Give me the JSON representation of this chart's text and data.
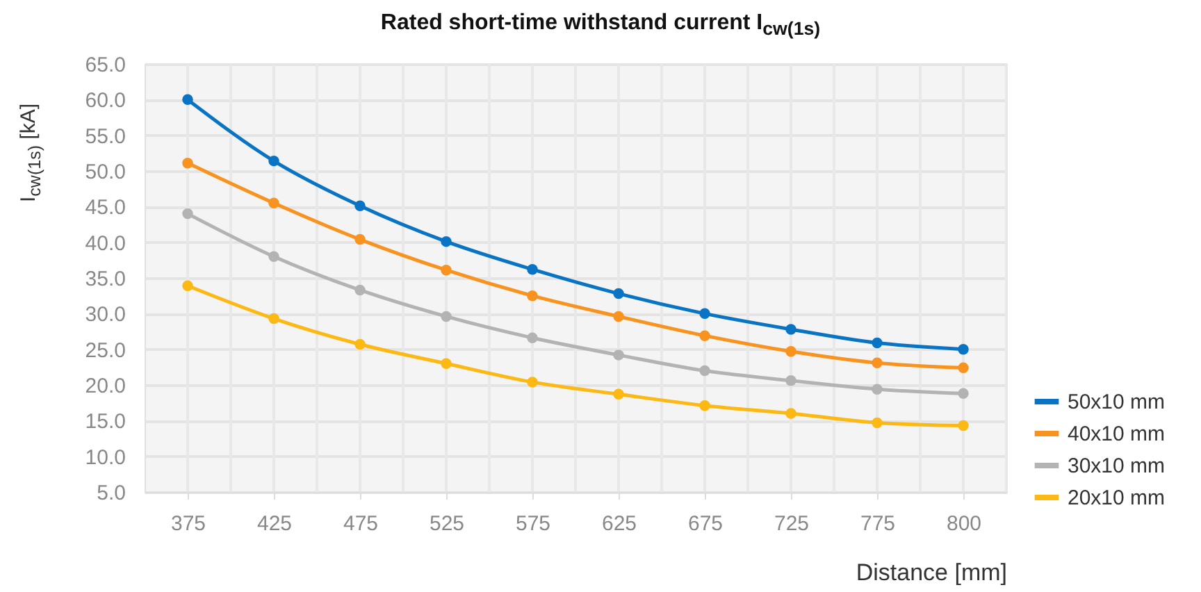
{
  "chart_data": {
    "type": "line",
    "title": "Rated short-time withstand current I$_{cw(1s)}$",
    "xlabel": "Distance [mm]",
    "ylabel": "I$_{cw(1s)}$ [kA]",
    "categories": [
      "375",
      "425",
      "475",
      "525",
      "575",
      "625",
      "675",
      "725",
      "775",
      "800"
    ],
    "series": [
      {
        "name": "50x10 mm",
        "color": "#0a74c4",
        "values": [
          60.0,
          51.4,
          45.1,
          40.1,
          36.2,
          32.8,
          30.0,
          27.8,
          25.9,
          25.0
        ]
      },
      {
        "name": "40x10 mm",
        "color": "#f7931e",
        "values": [
          51.1,
          45.5,
          40.4,
          36.1,
          32.5,
          29.6,
          26.9,
          24.7,
          23.1,
          22.4
        ]
      },
      {
        "name": "30x10 mm",
        "color": "#b3b3b3",
        "values": [
          44.0,
          38.0,
          33.3,
          29.6,
          26.6,
          24.2,
          22.0,
          20.6,
          19.4,
          18.8
        ]
      },
      {
        "name": "20x10 mm",
        "color": "#fcb813",
        "values": [
          33.9,
          29.3,
          25.7,
          23.0,
          20.4,
          18.7,
          17.1,
          16.0,
          14.7,
          14.3
        ]
      }
    ],
    "ylim": [
      5,
      65
    ],
    "yticks": [
      {
        "value": 5,
        "label": "5.0"
      },
      {
        "value": 10,
        "label": "10.0"
      },
      {
        "value": 15,
        "label": "15.0"
      },
      {
        "value": 20,
        "label": "20.0"
      },
      {
        "value": 25,
        "label": "25.0"
      },
      {
        "value": 30,
        "label": "30.0"
      },
      {
        "value": 35,
        "label": "35.0"
      },
      {
        "value": 40,
        "label": "40.0"
      },
      {
        "value": 45,
        "label": "45.0"
      },
      {
        "value": 50,
        "label": "50.0"
      },
      {
        "value": 55,
        "label": "55.0"
      },
      {
        "value": 60,
        "label": "60.0"
      },
      {
        "value": 65,
        "label": "65.0"
      }
    ],
    "grid": true,
    "legend": "bottom right",
    "marker": "circle",
    "line_style": "solid"
  }
}
